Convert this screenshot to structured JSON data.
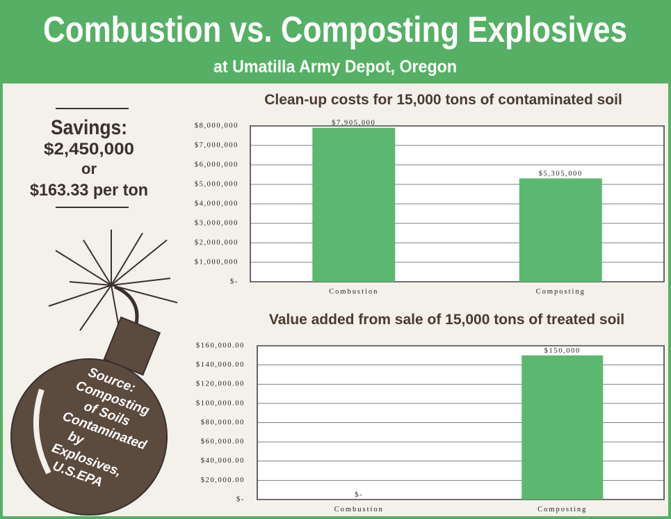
{
  "header": {
    "title": "Combustion vs. Composting Explosives",
    "subtitle": "at Umatilla Army Depot, Oregon"
  },
  "sidebar": {
    "heading": "Savings:",
    "amount": "$2,450,000",
    "or": "or",
    "per_ton": "$163.33 per ton"
  },
  "source": [
    "Source:",
    "Composting",
    "of Soils",
    "Contaminated",
    "by",
    "Explosives,",
    "U.S.EPA"
  ],
  "chart_data": [
    {
      "type": "bar",
      "title": "Clean-up costs for 15,000 tons of contaminated soil",
      "categories": [
        "Combustion",
        "Composting"
      ],
      "values": [
        7905000,
        5305000
      ],
      "value_labels": [
        "$7,905,000",
        "$5,305,000"
      ],
      "color": "#5cb870",
      "ylim": [
        0,
        8000000
      ],
      "yticks": [
        {
          "value": 0,
          "label": "$-"
        },
        {
          "value": 1000000,
          "label": "$1,000,000"
        },
        {
          "value": 2000000,
          "label": "$2,000,000"
        },
        {
          "value": 3000000,
          "label": "$3,000,000"
        },
        {
          "value": 4000000,
          "label": "$4,000,000"
        },
        {
          "value": 5000000,
          "label": "$5,000,000"
        },
        {
          "value": 6000000,
          "label": "$6,000,000"
        },
        {
          "value": 7000000,
          "label": "$7,000,000"
        },
        {
          "value": 8000000,
          "label": "$8,000,000"
        }
      ],
      "grid": true
    },
    {
      "type": "bar",
      "title": "Value added from sale of 15,000 tons of treated soil",
      "categories": [
        "Combustion",
        "Composting"
      ],
      "values": [
        0,
        150000
      ],
      "value_labels": [
        "$-",
        "$150,000"
      ],
      "color": "#5cb870",
      "ylim": [
        0,
        160000
      ],
      "yticks": [
        {
          "value": 0,
          "label": "$-"
        },
        {
          "value": 20000,
          "label": "$20,000.00"
        },
        {
          "value": 40000,
          "label": "$40,000.00"
        },
        {
          "value": 60000,
          "label": "$60,000.00"
        },
        {
          "value": 80000,
          "label": "$80,000.00"
        },
        {
          "value": 100000,
          "label": "$100,000.00"
        },
        {
          "value": 120000,
          "label": "$120,000.00"
        },
        {
          "value": 140000,
          "label": "$140,000.00"
        },
        {
          "value": 160000,
          "label": "$160,000.00"
        }
      ],
      "grid": true
    }
  ]
}
